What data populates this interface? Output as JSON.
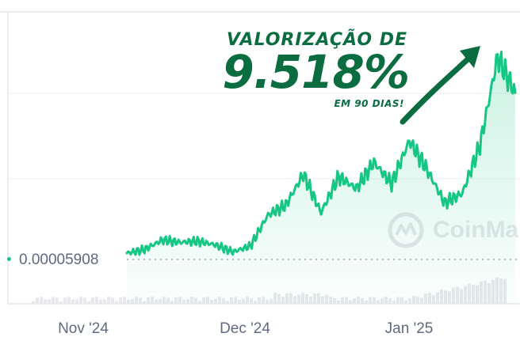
{
  "headline": {
    "top": "VALORIZAÇÃO DE",
    "value": "9.518%",
    "bottom": "EM 90 DIAS!"
  },
  "baseline_label": "0.00005908",
  "watermark": {
    "text": "CoinMa",
    "icon": "coinmarketcap-logo-icon"
  },
  "colors": {
    "line": "#16c784",
    "headline": "#0a6d40",
    "volume": "#e6e8ec",
    "grid": "#eceef2"
  },
  "chart_data": {
    "type": "area",
    "title": "",
    "xlabel": "",
    "ylabel": "",
    "x_ticks": [
      "Nov '24",
      "Dec '24",
      "Jan '25"
    ],
    "baseline": 5.908e-05,
    "baseline_style": "dotted",
    "grid": "horizontal",
    "series": [
      {
        "t": [
          0,
          4,
          8,
          12,
          16,
          20,
          24,
          28,
          32,
          36,
          40,
          44,
          48,
          52,
          56,
          60,
          64,
          68,
          72,
          76,
          80,
          84,
          88
        ],
        "relative_values": [
          1.0,
          1.15,
          1.55,
          1.45,
          1.5,
          1.35,
          1.05,
          1.3,
          2.6,
          3.0,
          4.3,
          2.7,
          4.2,
          3.7,
          4.8,
          3.9,
          5.7,
          4.5,
          3.1,
          3.5,
          5.5,
          9.2,
          7.7
        ]
      }
    ]
  }
}
